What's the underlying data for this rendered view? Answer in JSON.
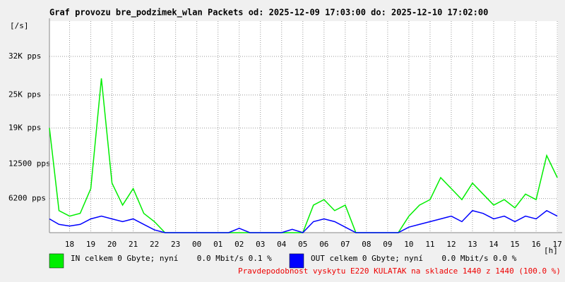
{
  "chart_data": {
    "type": "line",
    "title": "Graf provozu bre_podzimek_wlan Packets od: 2025-12-09 17:03:00 do: 2025-12-10 17:02:00",
    "y_label": "[/s]",
    "x_label": "[h]",
    "note": "Pravdepodobnost vyskytu E220 KULATAK na skladce 1440 z 1440 (100.0 %)",
    "xlim": [
      17.05,
      41.03
    ],
    "xticks": [
      18,
      19,
      20,
      21,
      22,
      23,
      {
        "value": 24,
        "label": "00"
      },
      {
        "value": 25,
        "label": "01"
      },
      {
        "value": 26,
        "label": "02"
      },
      {
        "value": 27,
        "label": "03"
      },
      {
        "value": 28,
        "label": "04"
      },
      {
        "value": 29,
        "label": "05"
      },
      {
        "value": 30,
        "label": "06"
      },
      {
        "value": 31,
        "label": "07"
      },
      {
        "value": 32,
        "label": "08"
      },
      {
        "value": 33,
        "label": "09"
      },
      {
        "value": 34,
        "label": "10"
      },
      {
        "value": 35,
        "label": "11"
      },
      {
        "value": 36,
        "label": "12"
      },
      {
        "value": 37,
        "label": "13"
      },
      {
        "value": 38,
        "label": "14"
      },
      {
        "value": 39,
        "label": "15"
      },
      {
        "value": 40,
        "label": "16"
      },
      {
        "value": 41,
        "label": "17"
      }
    ],
    "ylim": [
      0,
      38400
    ],
    "yticks": [
      {
        "value": 6200,
        "label": "6200 pps"
      },
      {
        "value": 12500,
        "label": "12500 pps"
      },
      {
        "value": 19000,
        "label": "19K pps"
      },
      {
        "value": 25000,
        "label": "25K pps"
      },
      {
        "value": 32000,
        "label": "32K pps"
      }
    ],
    "grid": true,
    "x": [
      17.05,
      17.5,
      18,
      18.5,
      19,
      19.5,
      20,
      20.5,
      21,
      21.5,
      22,
      22.5,
      23,
      23.5,
      24,
      24.5,
      25,
      25.5,
      26,
      26.5,
      27,
      27.5,
      28,
      28.5,
      29,
      29.5,
      30,
      30.5,
      31,
      31.5,
      32,
      32.5,
      33,
      33.5,
      34,
      34.5,
      35,
      35.5,
      36,
      36.5,
      37,
      37.5,
      38,
      38.5,
      39,
      39.5,
      40,
      40.5,
      41
    ],
    "series": [
      {
        "name": "IN celkem 0 Gbyte; nyní    0.0 Mbit/s 0.1 %",
        "color": "#00ee00",
        "values": [
          19000,
          4000,
          3000,
          3500,
          8000,
          28000,
          9000,
          5000,
          8000,
          3500,
          2000,
          0,
          0,
          0,
          0,
          0,
          0,
          0,
          0,
          0,
          0,
          0,
          0,
          0,
          0,
          5000,
          6000,
          4000,
          5000,
          0,
          0,
          0,
          0,
          0,
          3000,
          5000,
          6000,
          10000,
          8000,
          6000,
          9000,
          7000,
          5000,
          6000,
          4500,
          7000,
          6000,
          14000,
          10000
        ]
      },
      {
        "name": "OUT celkem 0 Gbyte; nyní    0.0 Mbit/s 0.0 %",
        "color": "#0000ff",
        "values": [
          2500,
          1500,
          1200,
          1500,
          2500,
          3000,
          2500,
          2000,
          2500,
          1500,
          500,
          0,
          0,
          0,
          0,
          0,
          0,
          0,
          800,
          0,
          0,
          0,
          0,
          600,
          0,
          2000,
          2500,
          2000,
          1000,
          0,
          0,
          0,
          0,
          0,
          1000,
          1500,
          2000,
          2500,
          3000,
          2000,
          4000,
          3500,
          2500,
          3000,
          2000,
          3000,
          2500,
          4000,
          3000
        ]
      }
    ]
  }
}
